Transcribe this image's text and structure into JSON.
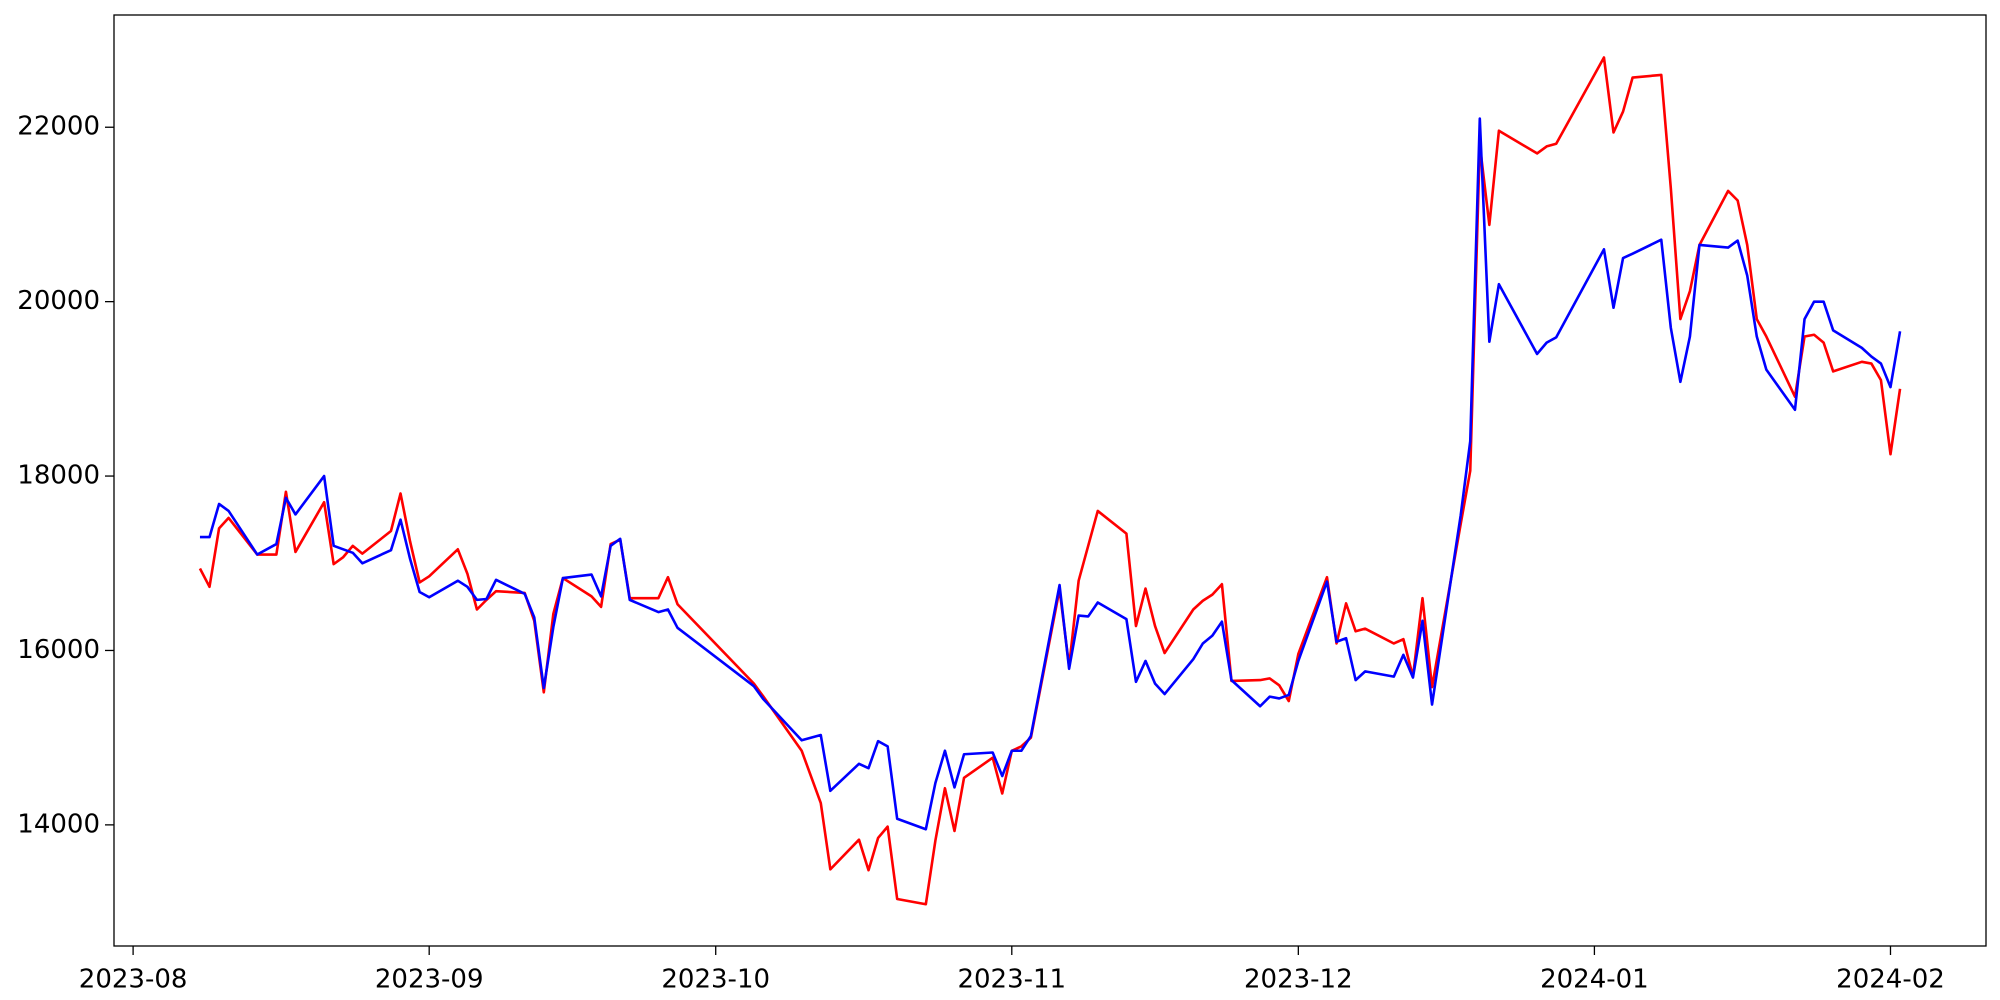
{
  "chart_data": {
    "type": "line",
    "x": [
      "2023-08-08",
      "2023-08-09",
      "2023-08-10",
      "2023-08-11",
      "2023-08-14",
      "2023-08-16",
      "2023-08-17",
      "2023-08-18",
      "2023-08-21",
      "2023-08-22",
      "2023-08-23",
      "2023-08-24",
      "2023-08-25",
      "2023-08-28",
      "2023-08-29",
      "2023-08-30",
      "2023-08-31",
      "2023-09-01",
      "2023-09-04",
      "2023-09-05",
      "2023-09-06",
      "2023-09-07",
      "2023-09-08",
      "2023-09-11",
      "2023-09-12",
      "2023-09-13",
      "2023-09-14",
      "2023-09-15",
      "2023-09-18",
      "2023-09-19",
      "2023-09-20",
      "2023-09-21",
      "2023-09-22",
      "2023-09-25",
      "2023-09-26",
      "2023-09-27",
      "2023-10-05",
      "2023-10-06",
      "2023-10-10",
      "2023-10-12",
      "2023-10-13",
      "2023-10-16",
      "2023-10-17",
      "2023-10-18",
      "2023-10-19",
      "2023-10-20",
      "2023-10-23",
      "2023-10-24",
      "2023-10-25",
      "2023-10-26",
      "2023-10-27",
      "2023-10-30",
      "2023-10-31",
      "2023-11-01",
      "2023-11-02",
      "2023-11-03",
      "2023-11-06",
      "2023-11-07",
      "2023-11-08",
      "2023-11-09",
      "2023-11-10",
      "2023-11-13",
      "2023-11-14",
      "2023-11-15",
      "2023-11-16",
      "2023-11-17",
      "2023-11-20",
      "2023-11-21",
      "2023-11-22",
      "2023-11-23",
      "2023-11-24",
      "2023-11-27",
      "2023-11-28",
      "2023-11-29",
      "2023-11-30",
      "2023-12-01",
      "2023-12-04",
      "2023-12-05",
      "2023-12-06",
      "2023-12-07",
      "2023-12-08",
      "2023-12-11",
      "2023-12-12",
      "2023-12-13",
      "2023-12-14",
      "2023-12-15",
      "2023-12-18",
      "2023-12-19",
      "2023-12-20",
      "2023-12-21",
      "2023-12-22",
      "2023-12-26",
      "2023-12-27",
      "2023-12-28",
      "2024-01-02",
      "2024-01-03",
      "2024-01-04",
      "2024-01-05",
      "2024-01-08",
      "2024-01-09",
      "2024-01-10",
      "2024-01-11",
      "2024-01-12",
      "2024-01-15",
      "2024-01-16",
      "2024-01-17",
      "2024-01-18",
      "2024-01-19",
      "2024-01-22",
      "2024-01-23",
      "2024-01-24",
      "2024-01-25",
      "2024-01-26",
      "2024-01-29",
      "2024-01-30",
      "2024-01-31",
      "2024-02-01",
      "2024-02-02"
    ],
    "series": [
      {
        "color": "#ff0000",
        "values": [
          16940,
          16730,
          17400,
          17520,
          17100,
          17100,
          17820,
          17130,
          17700,
          16990,
          17070,
          17200,
          17110,
          17370,
          17800,
          17250,
          16780,
          16850,
          17160,
          16880,
          16470,
          16580,
          16680,
          16660,
          16340,
          15520,
          16420,
          16830,
          16620,
          16500,
          17220,
          17270,
          16600,
          16600,
          16840,
          16530,
          15620,
          15470,
          14850,
          14250,
          13490,
          13830,
          13480,
          13850,
          13980,
          13150,
          13090,
          13820,
          14420,
          13930,
          14540,
          14770,
          14360,
          14850,
          14900,
          15000,
          16700,
          15820,
          16800,
          17200,
          17600,
          17340,
          16280,
          16710,
          16280,
          15970,
          16470,
          16570,
          16640,
          16760,
          15650,
          15660,
          15680,
          15600,
          15420,
          15960,
          16840,
          16080,
          16540,
          16220,
          16250,
          16080,
          16130,
          15700,
          16600,
          15580,
          17450,
          18060,
          21800,
          20880,
          21960,
          21700,
          21780,
          21810,
          22800,
          21940,
          22180,
          22570,
          22600,
          21300,
          19800,
          20120,
          20650,
          21270,
          21160,
          20650,
          19800,
          19600,
          18910,
          19600,
          19620,
          19530,
          19200,
          19310,
          19290,
          19100,
          18250,
          19000
        ]
      },
      {
        "color": "#0000ff",
        "values": [
          17300,
          17300,
          17680,
          17600,
          17100,
          17220,
          17750,
          17560,
          18000,
          17200,
          17160,
          17120,
          17000,
          17150,
          17500,
          17050,
          16670,
          16610,
          16800,
          16730,
          16580,
          16590,
          16810,
          16650,
          16380,
          15570,
          16270,
          16830,
          16870,
          16620,
          17200,
          17280,
          16580,
          16440,
          16470,
          16260,
          15590,
          15440,
          14970,
          15030,
          14390,
          14700,
          14650,
          14960,
          14900,
          14070,
          13950,
          14480,
          14850,
          14430,
          14810,
          14830,
          14560,
          14850,
          14850,
          15020,
          16750,
          15790,
          16400,
          16390,
          16550,
          16360,
          15640,
          15880,
          15620,
          15500,
          15900,
          16080,
          16170,
          16330,
          15660,
          15360,
          15470,
          15450,
          15490,
          15880,
          16790,
          16100,
          16140,
          15660,
          15760,
          15700,
          15950,
          15690,
          16340,
          15380,
          17550,
          18400,
          22100,
          19540,
          20200,
          19400,
          19530,
          19590,
          20600,
          19930,
          20500,
          20550,
          20710,
          19700,
          19080,
          19600,
          20650,
          20620,
          20700,
          20300,
          19600,
          19220,
          18760,
          19800,
          20000,
          20000,
          19670,
          19470,
          19370,
          19290,
          19020,
          19660
        ]
      }
    ],
    "xlim": [
      "2023-07-30",
      "2024-02-11"
    ],
    "xticks": [
      {
        "value": "2023-08-01",
        "label": "2023-08"
      },
      {
        "value": "2023-09-01",
        "label": "2023-09"
      },
      {
        "value": "2023-10-01",
        "label": "2023-10"
      },
      {
        "value": "2023-11-01",
        "label": "2023-11"
      },
      {
        "value": "2023-12-01",
        "label": "2023-12"
      },
      {
        "value": "2024-01-01",
        "label": "2024-01"
      },
      {
        "value": "2024-02-01",
        "label": "2024-02"
      }
    ],
    "ylim": [
      12611,
      23287
    ],
    "yticks": [
      14000,
      16000,
      18000,
      20000,
      22000
    ],
    "grid": false
  }
}
